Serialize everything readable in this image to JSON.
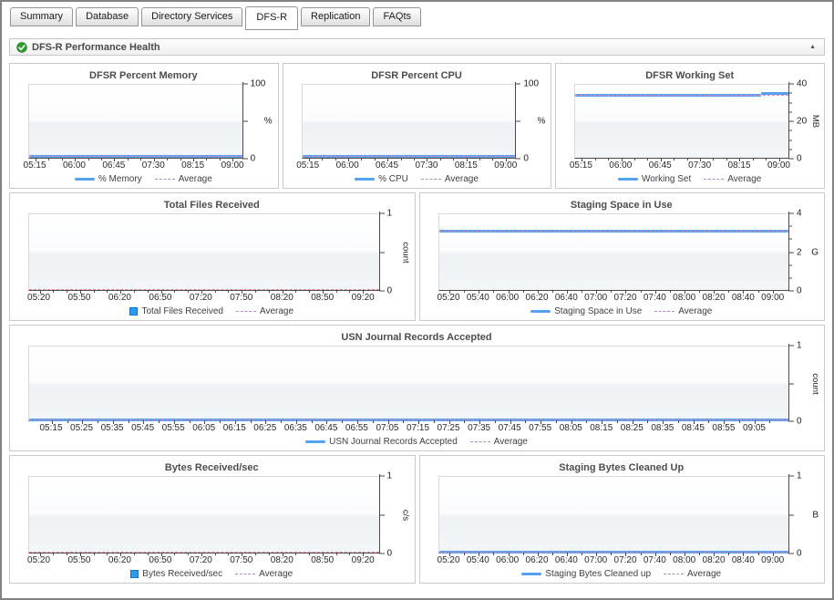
{
  "tabs": {
    "items": [
      {
        "label": "Summary",
        "active": false
      },
      {
        "label": "Database",
        "active": false
      },
      {
        "label": "Directory Services",
        "active": false
      },
      {
        "label": "DFS-R",
        "active": true
      },
      {
        "label": "Replication",
        "active": false
      },
      {
        "label": "FAQts",
        "active": false
      }
    ]
  },
  "section": {
    "title": "DFS-R Performance Health"
  },
  "icons": {
    "status_ok": "green-circle-check",
    "collapse_up": "▲"
  },
  "colors": {
    "line_blue": "#55a0ef",
    "bar_blue": "#2a9cf0",
    "average_pink": "#e787ac",
    "average_legend": "#b18bc9",
    "axis": "#4a4a4a"
  },
  "chart_data": [
    {
      "id": "dfsr-percent-memory",
      "type": "line",
      "title": "DFSR Percent Memory",
      "ylim": [
        0,
        100
      ],
      "y_ticks": [
        {
          "value": 100,
          "label": "100"
        },
        {
          "value": 50,
          "label": ""
        },
        {
          "value": 0,
          "label": "0"
        }
      ],
      "y_minor": [],
      "y_unit": {
        "text": "%",
        "rotated": false
      },
      "x_labels": [
        "05:15",
        "06:00",
        "06:45",
        "07:30",
        "08:15",
        "09:00"
      ],
      "x_minor_between": 2,
      "series": [
        {
          "name": "% Memory",
          "style": "solid",
          "approx": "flat ≈1 %",
          "segments": [
            {
              "f0": 0,
              "f1": 1,
              "y": 1
            }
          ]
        },
        {
          "name": "Average",
          "style": "dashed",
          "approx": "≈1 %",
          "segments": [
            {
              "f0": 0,
              "f1": 1,
              "y": 1
            }
          ]
        }
      ],
      "legend": [
        {
          "marker": "line",
          "label": "% Memory"
        },
        {
          "marker": "dash",
          "label": "Average"
        }
      ]
    },
    {
      "id": "dfsr-percent-cpu",
      "type": "line",
      "title": "DFSR Percent CPU",
      "ylim": [
        0,
        100
      ],
      "y_ticks": [
        {
          "value": 100,
          "label": "100"
        },
        {
          "value": 50,
          "label": ""
        },
        {
          "value": 0,
          "label": "0"
        }
      ],
      "y_minor": [],
      "y_unit": {
        "text": "%",
        "rotated": false
      },
      "x_labels": [
        "05:15",
        "06:00",
        "06:45",
        "07:30",
        "08:15",
        "09:00"
      ],
      "x_minor_between": 2,
      "series": [
        {
          "name": "% CPU",
          "style": "solid",
          "approx": "flat ≈1 %",
          "segments": [
            {
              "f0": 0,
              "f1": 1,
              "y": 1
            }
          ]
        },
        {
          "name": "Average",
          "style": "dashed",
          "approx": "≈1 %",
          "segments": [
            {
              "f0": 0,
              "f1": 1,
              "y": 1
            }
          ]
        }
      ],
      "legend": [
        {
          "marker": "line",
          "label": "% CPU"
        },
        {
          "marker": "dash",
          "label": "Average"
        }
      ]
    },
    {
      "id": "dfsr-working-set",
      "type": "line",
      "title": "DFSR Working Set",
      "ylim": [
        0,
        40
      ],
      "y_ticks": [
        {
          "value": 40,
          "label": "40"
        },
        {
          "value": 20,
          "label": "20"
        },
        {
          "value": 0,
          "label": "0"
        }
      ],
      "y_minor": [
        5,
        10,
        15,
        25,
        30,
        35
      ],
      "y_unit": {
        "text": "MB",
        "rotated": true
      },
      "x_labels": [
        "05:15",
        "06:00",
        "06:45",
        "07:30",
        "08:15",
        "09:00"
      ],
      "x_minor_between": 2,
      "series": [
        {
          "name": "Working Set",
          "style": "solid",
          "approx": "≈34 MB flat, step up to ≈35 MB after 08:40",
          "segments": [
            {
              "f0": 0,
              "f1": 0.87,
              "y": 34
            },
            {
              "f0": 0.87,
              "f1": 1,
              "y": 34.8
            }
          ]
        },
        {
          "name": "Average",
          "style": "dashed",
          "approx": "≈34 MB",
          "segments": [
            {
              "f0": 0,
              "f1": 1,
              "y": 34
            }
          ]
        }
      ],
      "legend": [
        {
          "marker": "line",
          "label": "Working Set"
        },
        {
          "marker": "dash",
          "label": "Average"
        }
      ]
    },
    {
      "id": "total-files-received",
      "type": "bar",
      "title": "Total Files Received",
      "ylim": [
        0,
        1
      ],
      "y_ticks": [
        {
          "value": 1,
          "label": "1"
        },
        {
          "value": 0.5,
          "label": ""
        },
        {
          "value": 0,
          "label": "0"
        }
      ],
      "y_minor": [],
      "y_unit": {
        "text": "count",
        "rotated": true
      },
      "x_labels": [
        "05:20",
        "05:50",
        "06:20",
        "06:50",
        "07:20",
        "07:50",
        "08:20",
        "08:50",
        "09:20"
      ],
      "x_minor_between": 2,
      "series": [
        {
          "name": "Total Files Received",
          "style": "none",
          "approx": "0 for entire period",
          "segments": []
        },
        {
          "name": "Average",
          "style": "dashed",
          "approx": "0",
          "segments": [
            {
              "f0": 0,
              "f1": 1,
              "y": 0
            }
          ]
        }
      ],
      "legend": [
        {
          "marker": "square",
          "label": "Total Files Received"
        },
        {
          "marker": "dash",
          "label": "Average"
        }
      ]
    },
    {
      "id": "staging-space-in-use",
      "type": "line",
      "title": "Staging Space in Use",
      "ylim": [
        0,
        4
      ],
      "y_ticks": [
        {
          "value": 4,
          "label": "4"
        },
        {
          "value": 2,
          "label": "2"
        },
        {
          "value": 0,
          "label": "0"
        }
      ],
      "y_minor": [
        0.67,
        1.33,
        2.67,
        3.33
      ],
      "y_unit": {
        "text": "G",
        "rotated": false
      },
      "x_labels": [
        "05:20",
        "05:40",
        "06:00",
        "06:20",
        "06:40",
        "07:00",
        "07:20",
        "07:40",
        "08:00",
        "08:20",
        "08:40",
        "09:00"
      ],
      "x_minor_between": 1,
      "series": [
        {
          "name": "Staging Space in Use",
          "style": "solid",
          "approx": "flat ≈3.1 G",
          "segments": [
            {
              "f0": 0,
              "f1": 1,
              "y": 3.1
            }
          ]
        },
        {
          "name": "Average",
          "style": "dashed",
          "approx": "≈3.1 G",
          "segments": [
            {
              "f0": 0,
              "f1": 1,
              "y": 3.1
            }
          ]
        }
      ],
      "legend": [
        {
          "marker": "line",
          "label": "Staging Space in Use"
        },
        {
          "marker": "dash",
          "label": "Average"
        }
      ]
    },
    {
      "id": "usn-journal-records-accepted",
      "type": "line",
      "title": "USN Journal Records Accepted",
      "ylim": [
        0,
        1
      ],
      "y_ticks": [
        {
          "value": 1,
          "label": "1"
        },
        {
          "value": 0.5,
          "label": ""
        },
        {
          "value": 0,
          "label": "0"
        }
      ],
      "y_minor": [],
      "y_unit": {
        "text": "count",
        "rotated": true
      },
      "x_labels": [
        "05:15",
        "05:25",
        "05:35",
        "05:45",
        "05:55",
        "06:05",
        "06:15",
        "06:25",
        "06:35",
        "06:45",
        "06:55",
        "07:05",
        "07:15",
        "07:25",
        "07:35",
        "07:45",
        "07:55",
        "08:05",
        "08:15",
        "08:25",
        "08:35",
        "08:45",
        "08:55",
        "09:05"
      ],
      "x_minor_between": 1,
      "series": [
        {
          "name": "USN Journal Records Accepted",
          "style": "solid",
          "approx": "0 flat",
          "segments": [
            {
              "f0": 0,
              "f1": 1,
              "y": 0
            }
          ]
        },
        {
          "name": "Average",
          "style": "dashed",
          "approx": "0",
          "segments": [
            {
              "f0": 0,
              "f1": 1,
              "y": 0
            }
          ]
        }
      ],
      "legend": [
        {
          "marker": "line",
          "label": "USN Journal Records Accepted"
        },
        {
          "marker": "dash",
          "label": "Average"
        }
      ]
    },
    {
      "id": "bytes-received-sec",
      "type": "bar",
      "title": "Bytes Received/sec",
      "ylim": [
        0,
        1
      ],
      "y_ticks": [
        {
          "value": 1,
          "label": "1"
        },
        {
          "value": 0.5,
          "label": ""
        },
        {
          "value": 0,
          "label": "0"
        }
      ],
      "y_minor": [],
      "y_unit": {
        "text": "c/s",
        "rotated": true
      },
      "x_labels": [
        "05:20",
        "05:50",
        "06:20",
        "06:50",
        "07:20",
        "07:50",
        "08:20",
        "08:50",
        "09:20"
      ],
      "x_minor_between": 2,
      "series": [
        {
          "name": "Bytes Received/sec",
          "style": "none",
          "approx": "0 for entire period",
          "segments": []
        },
        {
          "name": "Average",
          "style": "dashed",
          "approx": "0",
          "segments": [
            {
              "f0": 0,
              "f1": 1,
              "y": 0
            }
          ]
        }
      ],
      "legend": [
        {
          "marker": "square",
          "label": "Bytes Received/sec"
        },
        {
          "marker": "dash",
          "label": "Average"
        }
      ]
    },
    {
      "id": "staging-bytes-cleaned-up",
      "type": "line",
      "title": "Staging Bytes Cleaned Up",
      "ylim": [
        0,
        1
      ],
      "y_ticks": [
        {
          "value": 1,
          "label": "1"
        },
        {
          "value": 0.5,
          "label": ""
        },
        {
          "value": 0,
          "label": "0"
        }
      ],
      "y_minor": [],
      "y_unit": {
        "text": "B",
        "rotated": false
      },
      "x_labels": [
        "05:20",
        "05:40",
        "06:00",
        "06:20",
        "06:40",
        "07:00",
        "07:20",
        "07:40",
        "08:00",
        "08:20",
        "08:40",
        "09:00"
      ],
      "x_minor_between": 1,
      "series": [
        {
          "name": "Staging Bytes Cleaned up",
          "style": "solid",
          "approx": "0 flat",
          "segments": [
            {
              "f0": 0,
              "f1": 1,
              "y": 0
            }
          ]
        },
        {
          "name": "Average",
          "style": "dashed",
          "approx": "0",
          "segments": [
            {
              "f0": 0,
              "f1": 1,
              "y": 0
            }
          ]
        }
      ],
      "legend": [
        {
          "marker": "line",
          "label": "Staging Bytes Cleaned up"
        },
        {
          "marker": "dash",
          "label": "Average"
        }
      ]
    }
  ]
}
